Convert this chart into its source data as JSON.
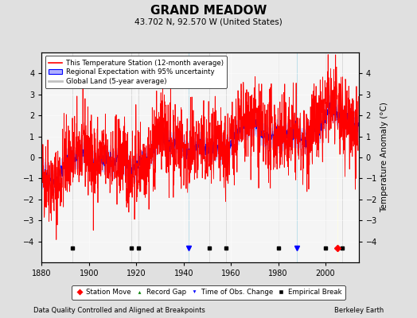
{
  "title": "GRAND MEADOW",
  "subtitle": "43.702 N, 92.570 W (United States)",
  "ylabel": "Temperature Anomaly (°C)",
  "footer_left": "Data Quality Controlled and Aligned at Breakpoints",
  "footer_right": "Berkeley Earth",
  "xlim": [
    1880,
    2014
  ],
  "ylim": [
    -5,
    5
  ],
  "yticks": [
    -4,
    -3,
    -2,
    -1,
    0,
    1,
    2,
    3,
    4
  ],
  "xticks": [
    1880,
    1900,
    1920,
    1940,
    1960,
    1980,
    2000
  ],
  "bg_color": "#e0e0e0",
  "plot_bg_color": "#f5f5f5",
  "station_moves": [
    2005
  ],
  "time_of_obs_changes": [
    1942,
    1988
  ],
  "empirical_breaks": [
    1893,
    1918,
    1921,
    1951,
    1958,
    1980,
    2000,
    2007
  ],
  "record_gaps": []
}
